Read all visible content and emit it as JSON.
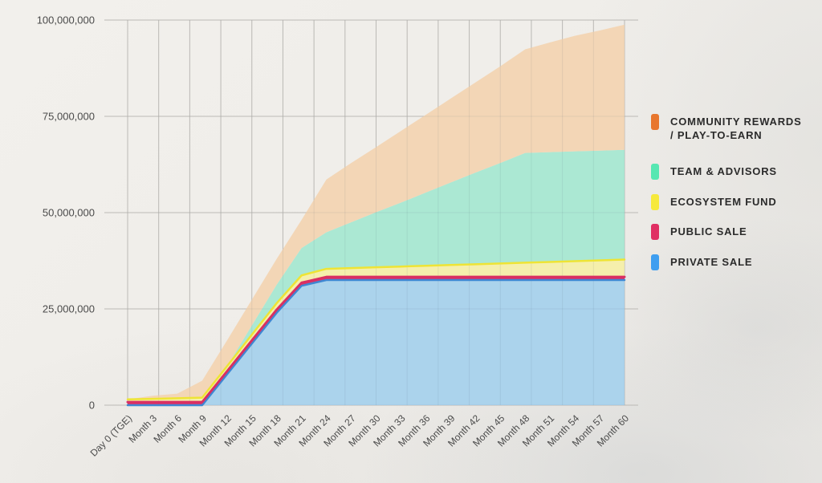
{
  "page": {
    "background_color": "#efede9",
    "axis_text_color": "#4a4a4a",
    "gridline_color": "#c9c5be"
  },
  "chart_data": {
    "type": "area",
    "stacked": true,
    "title": "",
    "xlabel": "",
    "ylabel": "",
    "ylim": [
      0,
      100000000
    ],
    "grid": true,
    "legend_position": "right",
    "categories": [
      "Day 0 (TGE)",
      "Month 3",
      "Month 6",
      "Month 9",
      "Month 12",
      "Month 15",
      "Month 18",
      "Month 21",
      "Month 24",
      "Month 27",
      "Month 30",
      "Month 33",
      "Month 36",
      "Month 39",
      "Month 42",
      "Month 45",
      "Month 48",
      "Month 51",
      "Month 54",
      "Month 57",
      "Month 60"
    ],
    "y_ticks": [
      {
        "value": 0,
        "label": "0"
      },
      {
        "value": 25000000,
        "label": "25,000,000"
      },
      {
        "value": 50000000,
        "label": "50,000,000"
      },
      {
        "value": 75000000,
        "label": "75,000,000"
      },
      {
        "value": 100000000,
        "label": "100,000,000"
      }
    ],
    "series": [
      {
        "name": "PRIVATE SALE",
        "fill": "#abd3ec",
        "stroke": "#3f86d2",
        "stroke_width": 2.5,
        "values": [
          0,
          0,
          0,
          0,
          8000000,
          16000000,
          24000000,
          31000000,
          32500000,
          32500000,
          32500000,
          32500000,
          32500000,
          32500000,
          32500000,
          32500000,
          32500000,
          32500000,
          32500000,
          32500000,
          32500000
        ]
      },
      {
        "name": "PUBLIC SALE",
        "fill": "#de3166",
        "stroke": "#d92f62",
        "stroke_width": 3,
        "values": [
          800000,
          800000,
          800000,
          800000,
          800000,
          800000,
          800000,
          800000,
          800000,
          800000,
          800000,
          800000,
          800000,
          800000,
          800000,
          800000,
          800000,
          800000,
          800000,
          800000,
          800000
        ]
      },
      {
        "name": "ECOSYSTEM FUND",
        "fill": "#f5efac",
        "stroke": "#eee435",
        "stroke_width": 2.5,
        "values": [
          700000,
          850000,
          1000000,
          1150000,
          1300000,
          1500000,
          1700000,
          1900000,
          2100000,
          2300000,
          2500000,
          2700000,
          2900000,
          3100000,
          3300000,
          3500000,
          3700000,
          3900000,
          4100000,
          4300000,
          4500000
        ]
      },
      {
        "name": "TEAM & ADVISORS",
        "fill": "#abe8d3",
        "stroke": "",
        "stroke_width": 0,
        "values": [
          0,
          0,
          0,
          0,
          0,
          2400000,
          4800000,
          7100000,
          9500000,
          11900000,
          14300000,
          16600000,
          19000000,
          21400000,
          23800000,
          26100000,
          28500000,
          28500000,
          28500000,
          28500000,
          28500000
        ]
      },
      {
        "name": "COMMUNITY REWARDS / PLAY-TO-EARN",
        "fill": "#f3d6b6",
        "stroke": "",
        "stroke_width": 0,
        "values": [
          0,
          800000,
          1200000,
          4400000,
          6700000,
          6700000,
          6700000,
          7300000,
          13700000,
          15400000,
          16900000,
          18600000,
          20200000,
          21800000,
          23400000,
          25100000,
          26900000,
          28500000,
          30000000,
          31200000,
          32500000
        ]
      }
    ]
  },
  "legend": {
    "items": [
      {
        "label_lines": [
          "COMMUNITY REWARDS",
          "/ PLAY-TO-EARN"
        ],
        "color": "#e8762d"
      },
      {
        "label_lines": [
          "TEAM & ADVISORS",
          ""
        ],
        "color": "#56e7b2"
      },
      {
        "label_lines": [
          "ECOSYSTEM FUND",
          ""
        ],
        "color": "#f6e93c"
      },
      {
        "label_lines": [
          "PUBLIC SALE",
          ""
        ],
        "color": "#e02f63"
      },
      {
        "label_lines": [
          "PRIVATE SALE",
          ""
        ],
        "color": "#3e9ef0"
      }
    ]
  }
}
